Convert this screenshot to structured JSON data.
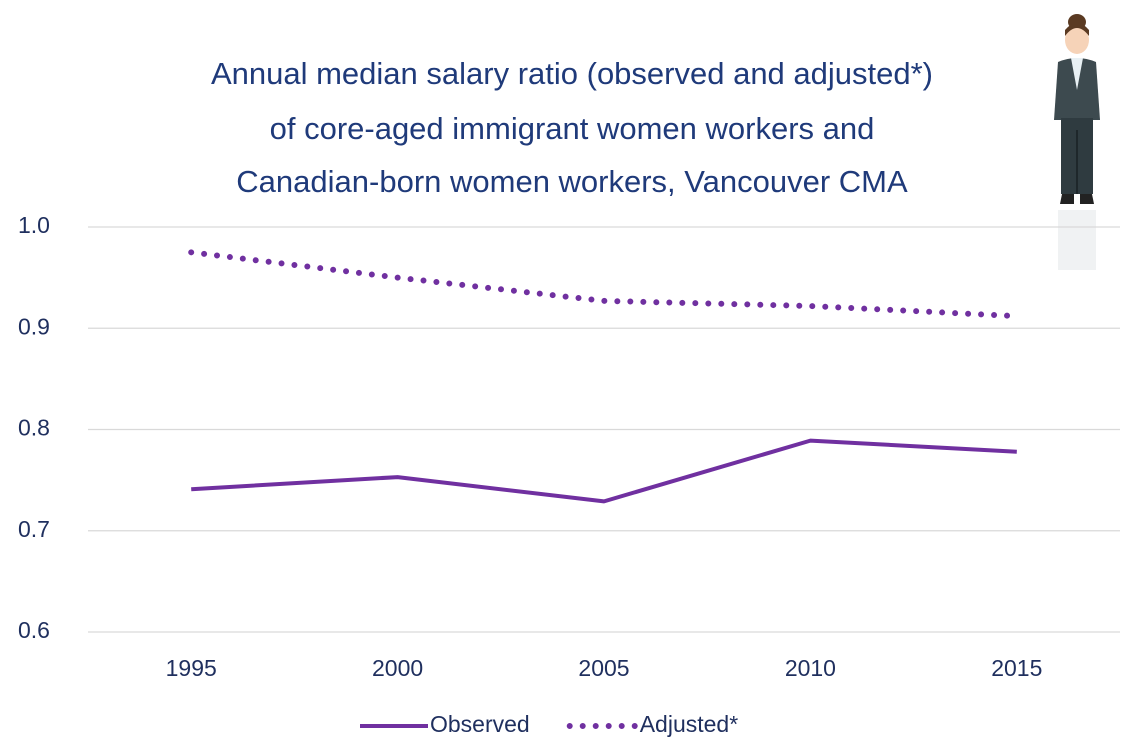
{
  "chart_data": {
    "type": "line",
    "title": [
      "Annual median salary ratio (observed and adjusted*)",
      "of core-aged immigrant women workers and",
      "Canadian-born women workers, Vancouver CMA"
    ],
    "categories": [
      "1995",
      "2000",
      "2005",
      "2010",
      "2015"
    ],
    "series": [
      {
        "name": "Observed",
        "color": "#7030a0",
        "style": "solid",
        "values": [
          0.741,
          0.753,
          0.729,
          0.789,
          0.778
        ]
      },
      {
        "name": "Adjusted*",
        "color": "#7030a0",
        "style": "dotted",
        "values": [
          0.975,
          0.95,
          0.927,
          0.922,
          0.912
        ]
      }
    ],
    "ylim": [
      0.6,
      1
    ],
    "yticks": [
      0.6,
      0.7,
      0.8,
      0.9,
      {
        "value": 1,
        "label": "1.0"
      }
    ],
    "grid": true,
    "legend": "bottom"
  }
}
